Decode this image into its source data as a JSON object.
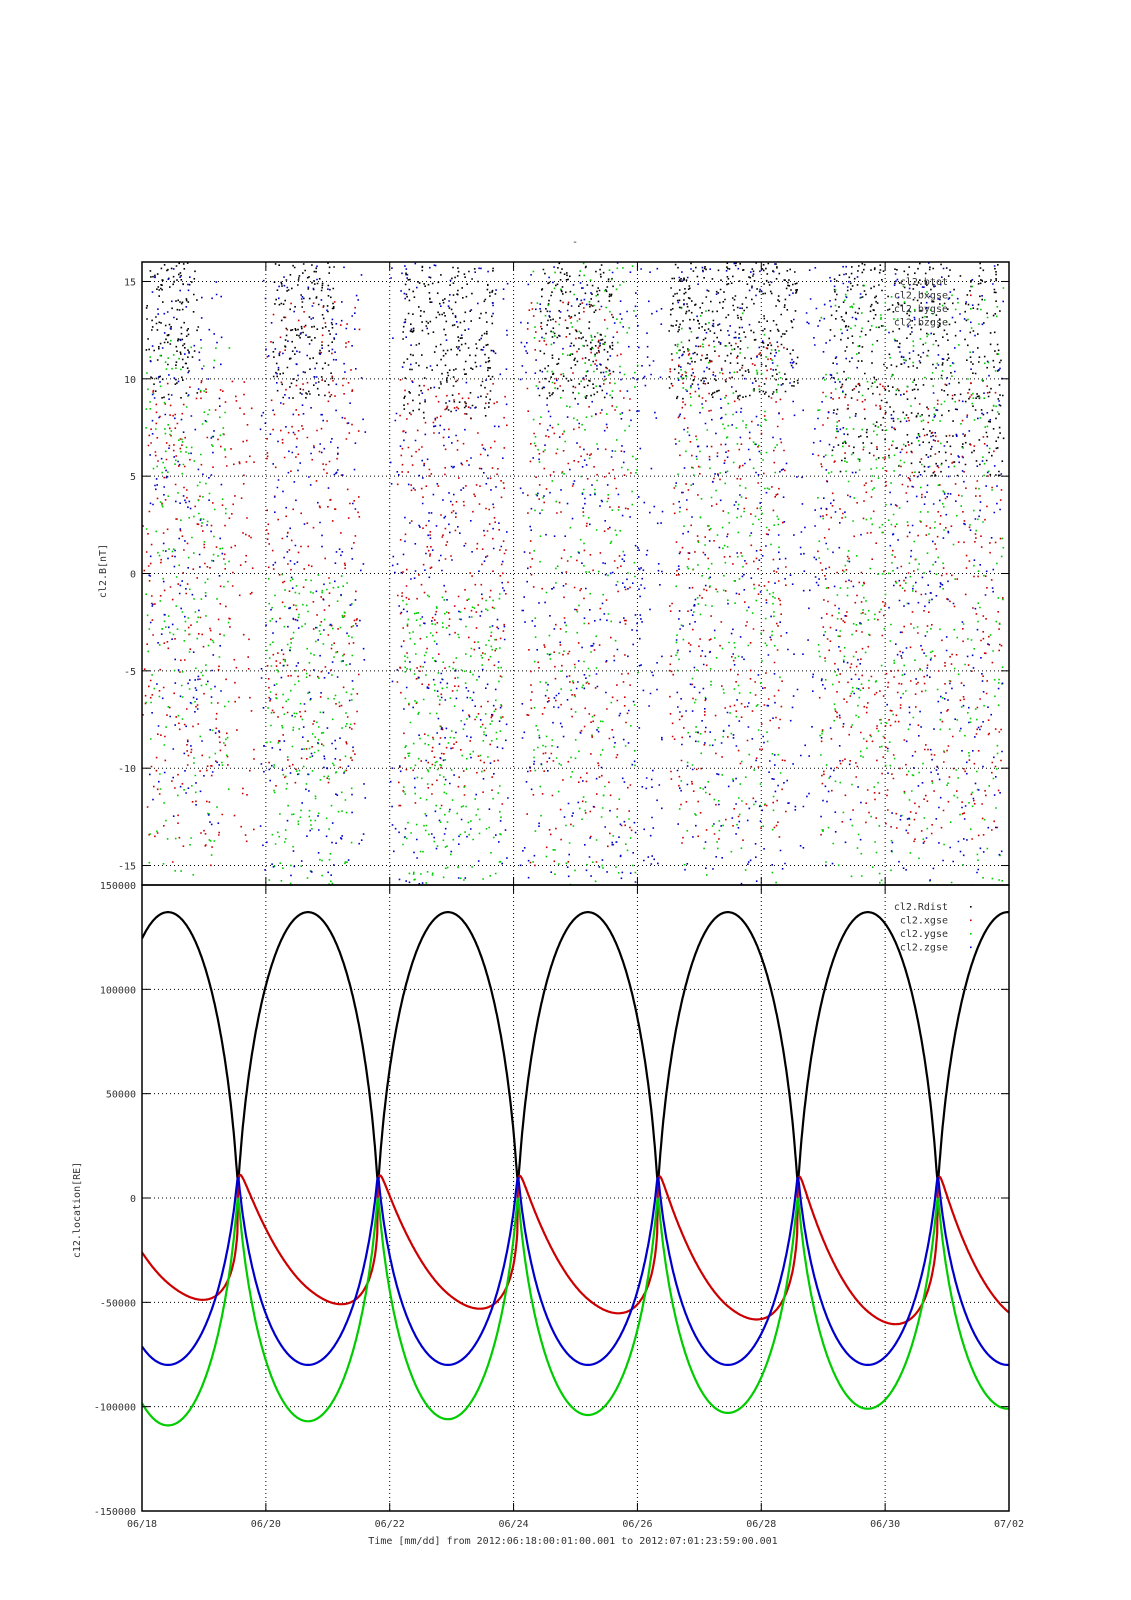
{
  "title": "-",
  "colors": {
    "black": "#000000",
    "red": "#cc0000",
    "green": "#00cc00",
    "blue": "#0000cc"
  },
  "chart_data": [
    {
      "type": "scatter",
      "ylabel": "cl2.B[nT]",
      "ylim": [
        -16,
        16
      ],
      "yticks": [
        -15,
        -10,
        -5,
        0,
        5,
        10,
        15
      ],
      "xlim": [
        0,
        14
      ],
      "grid": true,
      "legend_position": "top-right",
      "series": [
        {
          "name": "cl2.btot",
          "color": "#000000"
        },
        {
          "name": "cl2.bxgse",
          "color": "#cc0000"
        },
        {
          "name": "cl2.bygse",
          "color": "#00cc00"
        },
        {
          "name": "cl2.bzgse",
          "color": "#0000cc"
        }
      ],
      "note_values": "dense scatter, values estimated as daily envelopes (days since 06/18)",
      "segments": [
        {
          "series": 0,
          "x": [
            0.05,
            0.9
          ],
          "y": [
            9,
            16
          ]
        },
        {
          "series": 0,
          "x": [
            2.1,
            3.1
          ],
          "y": [
            9,
            16
          ]
        },
        {
          "series": 0,
          "x": [
            4.2,
            5.7
          ],
          "y": [
            8,
            16
          ]
        },
        {
          "series": 0,
          "x": [
            6.4,
            7.6
          ],
          "y": [
            9,
            16
          ]
        },
        {
          "series": 0,
          "x": [
            8.5,
            10.6
          ],
          "y": [
            9,
            16
          ]
        },
        {
          "series": 0,
          "x": [
            11.1,
            13.9
          ],
          "y": [
            5,
            16
          ]
        },
        {
          "series": 1,
          "x": [
            0.0,
            1.8
          ],
          "y": [
            -15,
            10
          ]
        },
        {
          "series": 1,
          "x": [
            2.0,
            3.5
          ],
          "y": [
            -11,
            14
          ]
        },
        {
          "series": 1,
          "x": [
            4.1,
            5.9
          ],
          "y": [
            -12,
            10
          ]
        },
        {
          "series": 1,
          "x": [
            6.2,
            7.9
          ],
          "y": [
            -15,
            14
          ]
        },
        {
          "series": 1,
          "x": [
            8.5,
            10.4
          ],
          "y": [
            -14,
            12
          ]
        },
        {
          "series": 1,
          "x": [
            10.9,
            13.9
          ],
          "y": [
            -14,
            10
          ]
        },
        {
          "series": 2,
          "x": [
            0.05,
            1.4
          ],
          "y": [
            -16,
            12
          ]
        },
        {
          "series": 2,
          "x": [
            2.0,
            3.4
          ],
          "y": [
            -16,
            0
          ]
        },
        {
          "series": 2,
          "x": [
            4.2,
            5.8
          ],
          "y": [
            -16,
            -1
          ]
        },
        {
          "series": 2,
          "x": [
            6.3,
            8.0
          ],
          "y": [
            -16,
            16
          ]
        },
        {
          "series": 2,
          "x": [
            8.6,
            10.3
          ],
          "y": [
            -16,
            14
          ]
        },
        {
          "series": 2,
          "x": [
            10.9,
            13.9
          ],
          "y": [
            -16,
            15
          ]
        },
        {
          "series": 3,
          "x": [
            0.1,
            1.3
          ],
          "y": [
            -13,
            16
          ]
        },
        {
          "series": 3,
          "x": [
            1.9,
            3.6
          ],
          "y": [
            -16,
            16
          ]
        },
        {
          "series": 3,
          "x": [
            4.0,
            5.9
          ],
          "y": [
            -16,
            16
          ]
        },
        {
          "series": 3,
          "x": [
            6.1,
            8.4
          ],
          "y": [
            -16,
            16
          ]
        },
        {
          "series": 3,
          "x": [
            8.6,
            11.6
          ],
          "y": [
            -16,
            16
          ]
        },
        {
          "series": 3,
          "x": [
            12.0,
            13.9
          ],
          "y": [
            -16,
            16
          ]
        }
      ]
    },
    {
      "type": "line",
      "ylabel": "c12.location[RE]",
      "xlabel": "Time [mm/dd]  from 2012:06:18:00:01:00.001  to  2012:07:01:23:59:00.001",
      "ylim": [
        -150000,
        150000
      ],
      "yticks": [
        -150000,
        -100000,
        -50000,
        0,
        50000,
        100000,
        150000
      ],
      "xlim": [
        0,
        14
      ],
      "xticks": [
        {
          "x": 0,
          "label": "06/18"
        },
        {
          "x": 2,
          "label": "06/20"
        },
        {
          "x": 4,
          "label": "06/22"
        },
        {
          "x": 6,
          "label": "06/24"
        },
        {
          "x": 8,
          "label": "06/26"
        },
        {
          "x": 10,
          "label": "06/28"
        },
        {
          "x": 12,
          "label": "06/30"
        },
        {
          "x": 14,
          "label": "07/02"
        }
      ],
      "grid": true,
      "legend_position": "top-right",
      "period_days": 2.26,
      "perigee_times": [
        1.55,
        3.82,
        6.09,
        8.36,
        10.63,
        12.9
      ],
      "series": [
        {
          "name": "cl2.Rdist",
          "color": "#000000",
          "apogee": 137000,
          "perigee": 8000
        },
        {
          "name": "cl2.xgse",
          "color": "#cc0000",
          "max": 19000,
          "min": [
            -49000,
            -52000,
            -55000,
            -58000,
            -62000,
            -65000
          ]
        },
        {
          "name": "cl2.ygse",
          "color": "#00cc00",
          "max": 0,
          "min": [
            -109000,
            -107000,
            -106000,
            -104000,
            -103000,
            -101000
          ]
        },
        {
          "name": "cl2.zgse",
          "color": "#0000cc",
          "max": 10000,
          "min": -80000
        }
      ]
    }
  ]
}
